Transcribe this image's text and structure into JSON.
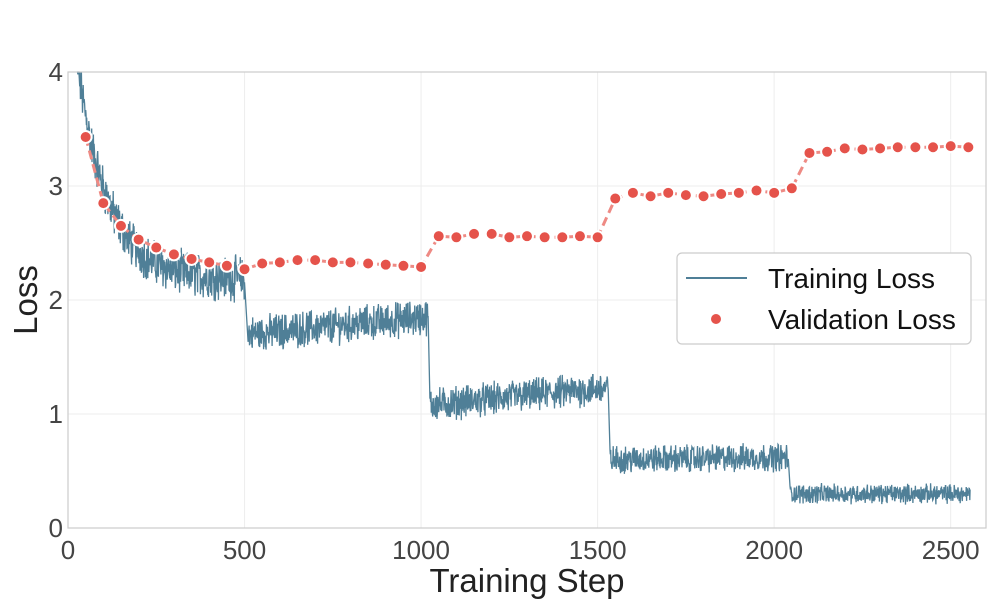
{
  "chart_data": {
    "type": "line",
    "title": "",
    "xlabel": "Training Step",
    "ylabel": "Loss",
    "xlim": [
      0,
      2600
    ],
    "ylim": [
      0,
      4
    ],
    "x_ticks": [
      0,
      500,
      1000,
      1500,
      2000,
      2500
    ],
    "y_ticks": [
      0,
      1,
      2,
      3,
      4
    ],
    "x_tick_labels": [
      "0",
      "500",
      "1000",
      "1500",
      "2000",
      "2500"
    ],
    "y_tick_labels": [
      "0",
      "1",
      "2",
      "3",
      "4"
    ],
    "grid": true,
    "legend_position": "center-right",
    "colors": {
      "training": "#4f7f97",
      "validation": "#e5534b",
      "validation_line": "#ee8a84"
    },
    "series": [
      {
        "name": "Training Loss",
        "kind": "line",
        "segments": [
          {
            "x_start": 25,
            "x_end": 500,
            "start_value": 4.1,
            "end_value": 2.18,
            "noise": 0.16
          },
          {
            "x_start": 510,
            "x_end": 1020,
            "start_value": 1.7,
            "end_value": 1.85,
            "noise": 0.13
          },
          {
            "x_start": 1025,
            "x_end": 1530,
            "start_value": 1.08,
            "end_value": 1.23,
            "noise": 0.12
          },
          {
            "x_start": 1535,
            "x_end": 2040,
            "start_value": 0.6,
            "end_value": 0.62,
            "noise": 0.1
          },
          {
            "x_start": 2045,
            "x_end": 2555,
            "start_value": 0.3,
            "end_value": 0.3,
            "noise": 0.07
          }
        ]
      },
      {
        "name": "Validation Loss",
        "kind": "scatter",
        "x": [
          50,
          100,
          150,
          200,
          250,
          300,
          350,
          400,
          450,
          500,
          550,
          600,
          650,
          700,
          750,
          800,
          850,
          900,
          950,
          1000,
          1050,
          1100,
          1150,
          1200,
          1250,
          1300,
          1350,
          1400,
          1450,
          1500,
          1550,
          1600,
          1650,
          1700,
          1750,
          1800,
          1850,
          1900,
          1950,
          2000,
          2050,
          2100,
          2150,
          2200,
          2250,
          2300,
          2350,
          2400,
          2450,
          2500,
          2550
        ],
        "values": [
          3.43,
          2.85,
          2.65,
          2.53,
          2.46,
          2.4,
          2.36,
          2.33,
          2.3,
          2.27,
          2.32,
          2.33,
          2.35,
          2.35,
          2.33,
          2.33,
          2.32,
          2.31,
          2.3,
          2.29,
          2.56,
          2.55,
          2.58,
          2.58,
          2.55,
          2.56,
          2.55,
          2.55,
          2.56,
          2.55,
          2.89,
          2.94,
          2.91,
          2.94,
          2.92,
          2.91,
          2.93,
          2.94,
          2.96,
          2.94,
          2.98,
          3.29,
          3.3,
          3.33,
          3.32,
          3.33,
          3.34,
          3.34,
          3.34,
          3.35,
          3.34
        ]
      }
    ]
  }
}
